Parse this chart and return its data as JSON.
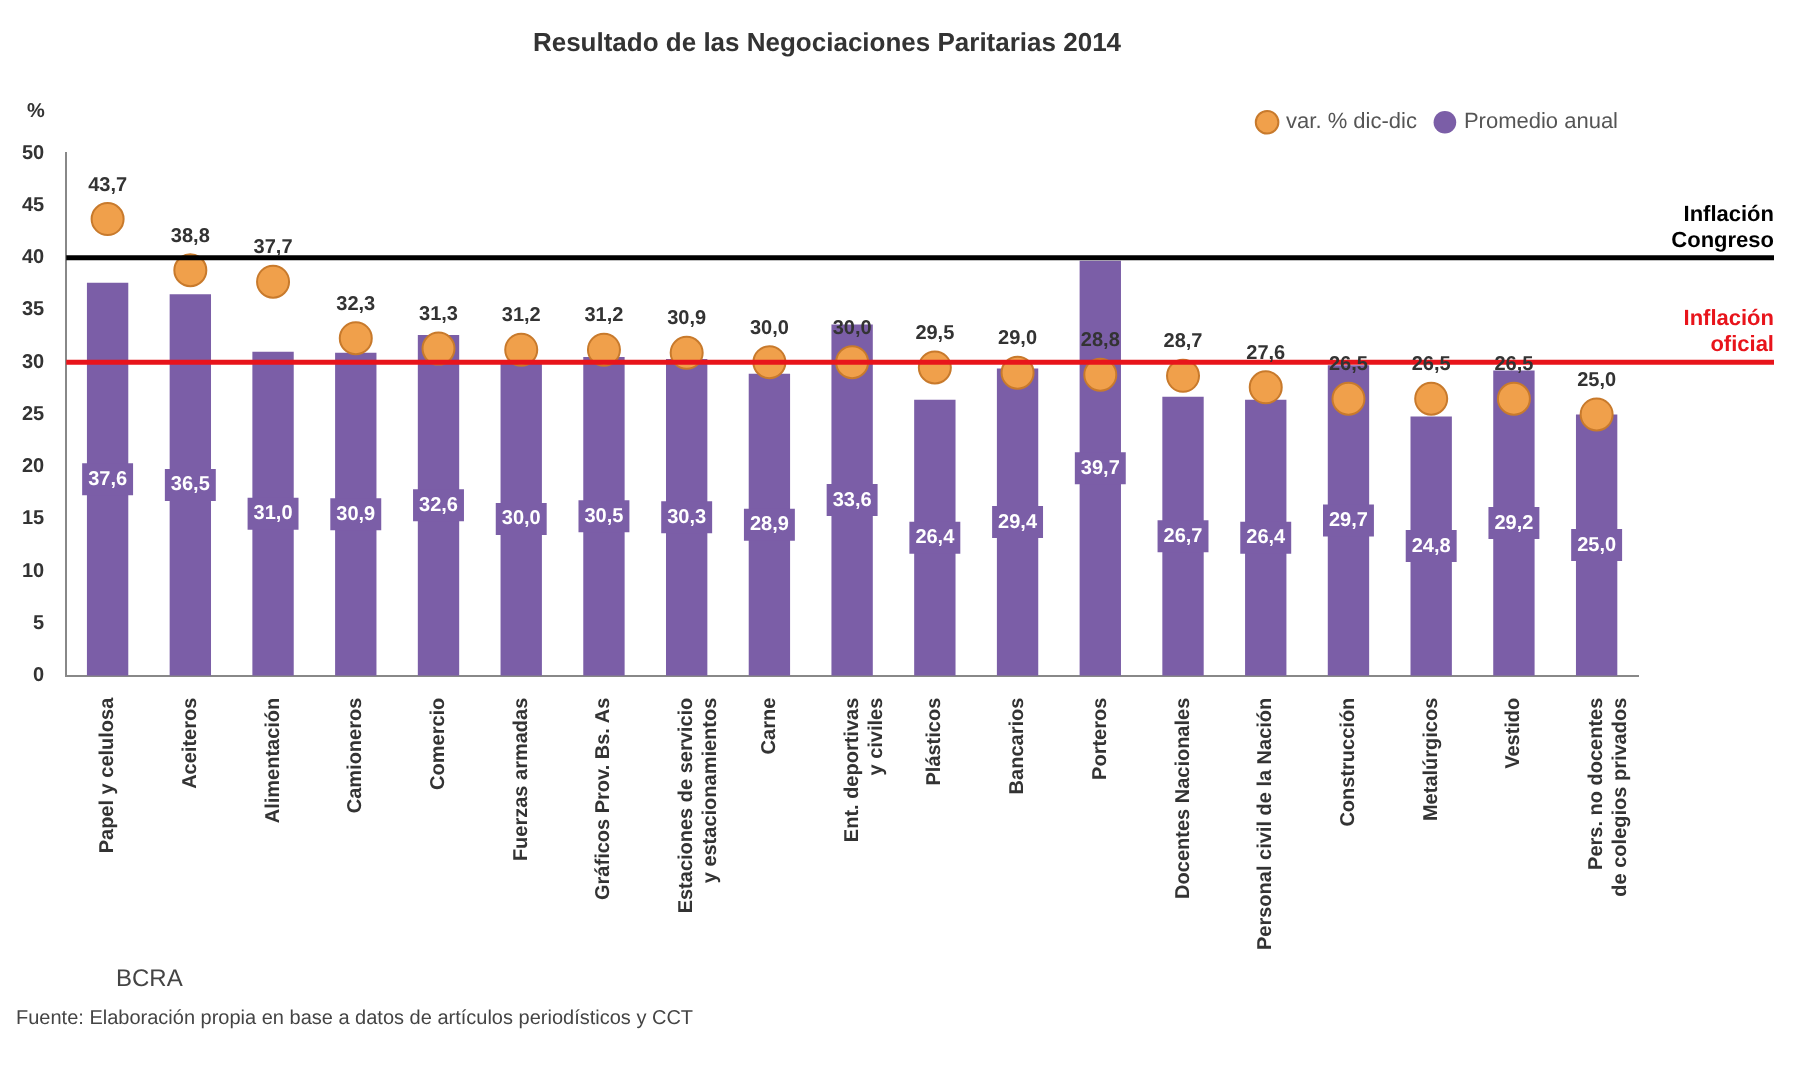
{
  "chart_data": {
    "type": "bar",
    "title": "Resultado de las Negociaciones Paritarias 2014",
    "ylabel": "%",
    "categories": [
      "Papel y celulosa",
      "Aceiteros",
      "Alimentación",
      "Camioneros",
      "Comercio",
      "Fuerzas armadas",
      "Gráficos Prov. Bs. As",
      "Estaciones de servicio\ny estacionamientos",
      "Carne",
      "Ent. deportivas\ny civiles",
      "Plásticos",
      "Bancarios",
      "Porteros",
      "Docentes Nacionales",
      "Personal civil de la Nación",
      "Construcción",
      "Metalúrgicos",
      "Vestido",
      "Pers. no docentes\nde colegios privados"
    ],
    "series": [
      {
        "name": "Promedio anual",
        "color": "#7b5ea7",
        "values": [
          37.6,
          36.5,
          31.0,
          30.9,
          32.6,
          30.0,
          30.5,
          30.3,
          28.9,
          33.6,
          26.4,
          29.4,
          39.7,
          26.7,
          26.4,
          29.7,
          24.8,
          29.2,
          25.0
        ],
        "value_labels": [
          "37,6",
          "36,5",
          "31,0",
          "30,9",
          "32,6",
          "30,0",
          "30,5",
          "30,3",
          "28,9",
          "33,6",
          "26,4",
          "29,4",
          "39,7",
          "26,7",
          "26,4",
          "29,7",
          "24,8",
          "29,2",
          "25,0"
        ]
      },
      {
        "name": "var. % dic-dic",
        "type": "scatter",
        "color": "#f0a04b",
        "values": [
          43.7,
          38.8,
          37.7,
          32.3,
          31.3,
          31.2,
          31.2,
          30.9,
          30.0,
          30.0,
          29.5,
          29.0,
          28.8,
          28.7,
          27.6,
          26.5,
          26.5,
          26.5,
          25.0
        ],
        "value_labels": [
          "43,7",
          "38,8",
          "37,7",
          "32,3",
          "31,3",
          "31,2",
          "31,2",
          "30,9",
          "30,0",
          "30,0",
          "29,5",
          "29,0",
          "28,8",
          "28,7",
          "27,6",
          "26,5",
          "26,5",
          "26,5",
          "25,0"
        ]
      }
    ],
    "ylim": [
      0,
      50
    ],
    "yticks": [
      0,
      5,
      10,
      15,
      20,
      25,
      30,
      35,
      40,
      45,
      50
    ],
    "grid": false,
    "legend": "top right",
    "marker": "circle",
    "ref_lines": [
      {
        "axis": "y",
        "value": 40,
        "label": "Inflación\nCongreso",
        "color": "#000000"
      },
      {
        "axis": "y",
        "value": 30,
        "label": "Inflación\noficial",
        "color": "#e8141b"
      }
    ],
    "annotations": [
      "BCRA",
      "Fuente: Elaboración propia en base a datos de artículos periodísticos y CCT"
    ]
  }
}
